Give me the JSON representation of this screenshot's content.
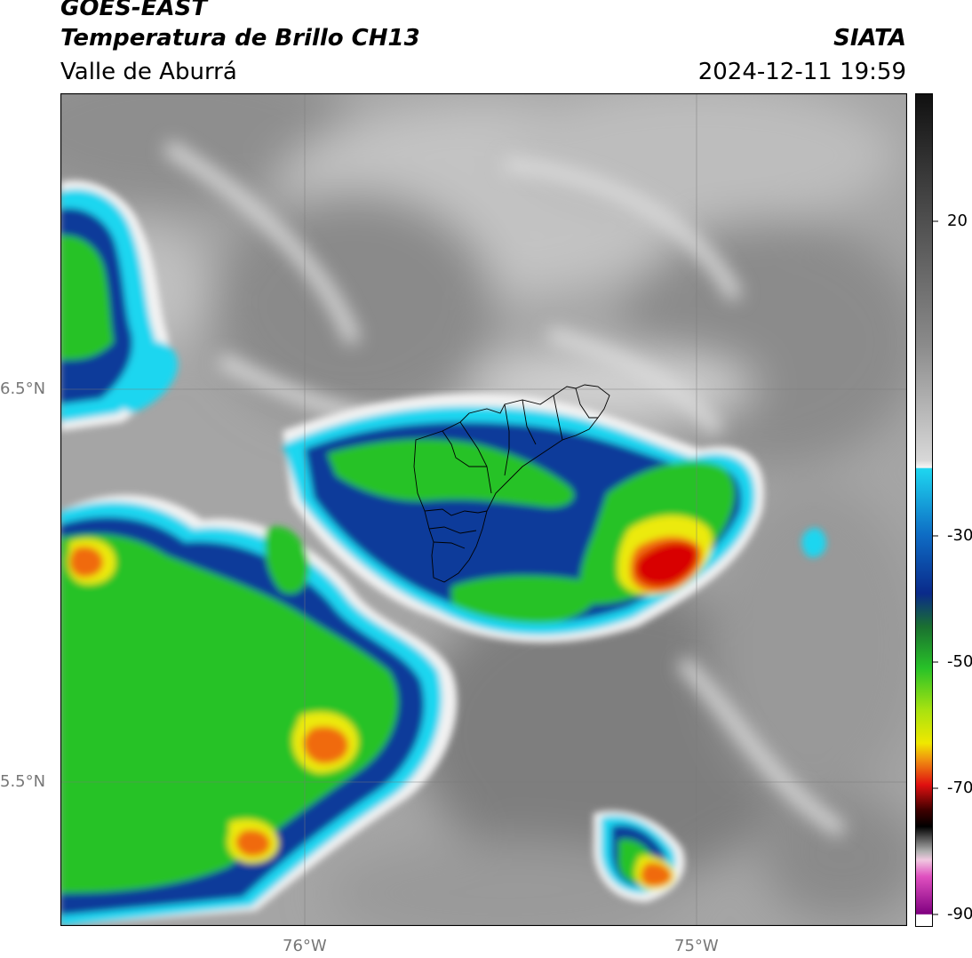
{
  "header": {
    "satellite": "GOES-EAST",
    "product": "Temperatura de Brillo CH13",
    "region": "Valle de Aburrá",
    "agency": "SIATA",
    "datetime": "2024-12-11 19:59"
  },
  "map": {
    "lon_labels": [
      "76°W",
      "75°W"
    ],
    "lat_labels": [
      "6.5°N",
      "5.5°N"
    ]
  },
  "colorbar": {
    "labels": [
      "20",
      "-30",
      "-50",
      "-70",
      "-90"
    ]
  },
  "colors": {
    "cold_cyan": "#1ed6f0",
    "deep_blue": "#003a8c",
    "green": "#28c228",
    "yellow": "#f0e800",
    "red": "#d80000"
  }
}
